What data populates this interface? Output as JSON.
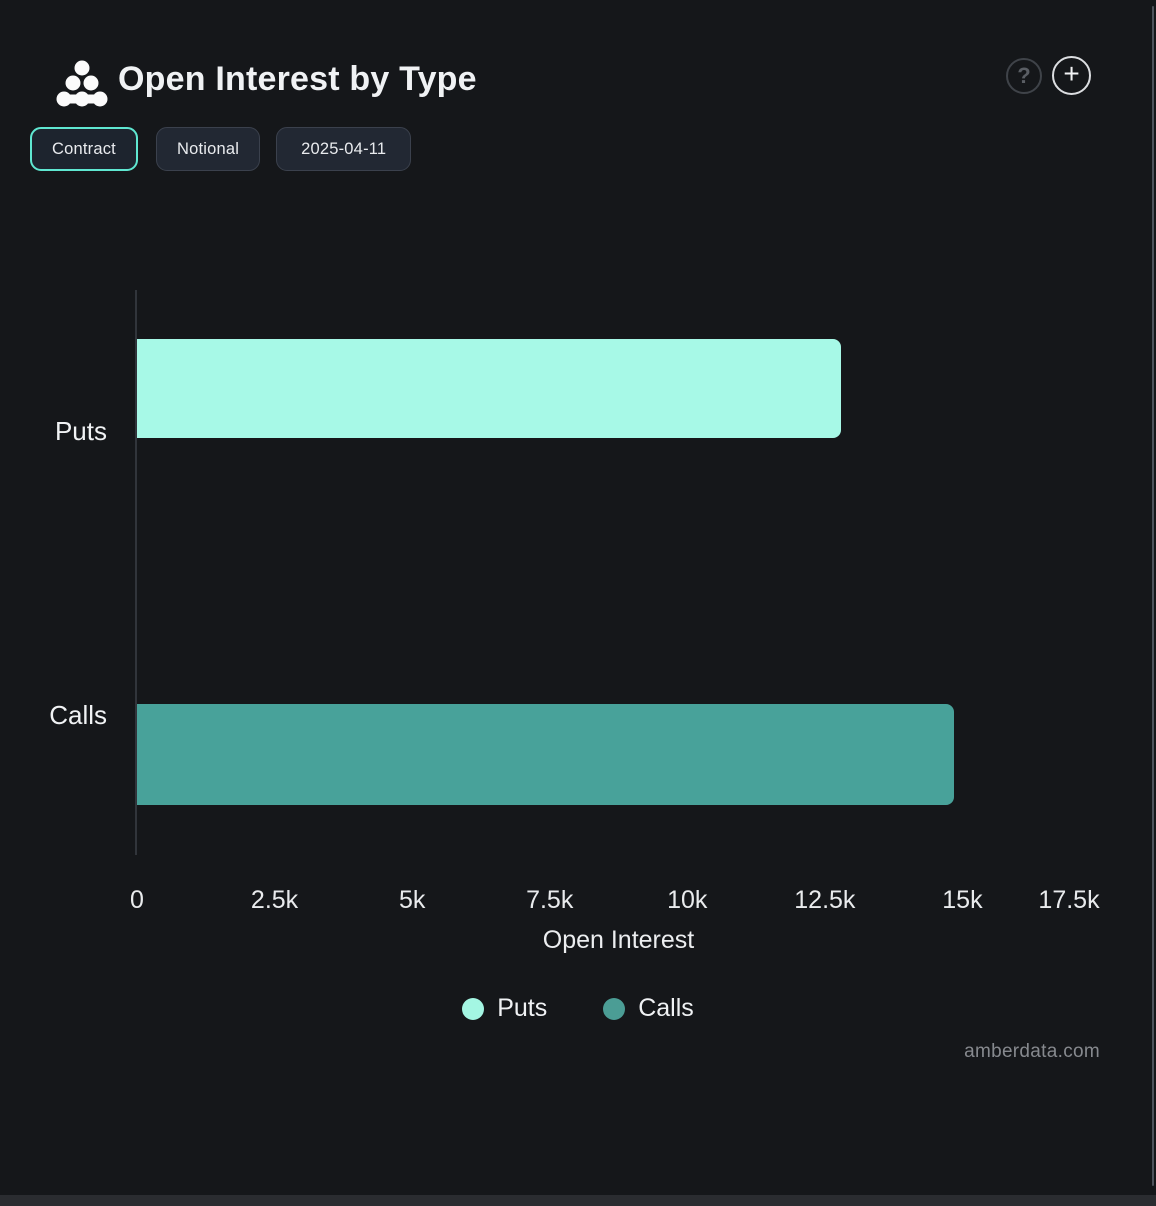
{
  "header": {
    "title": "Open Interest by Type",
    "help_label": "?",
    "add_label": "+"
  },
  "toolbar": {
    "buttons": [
      {
        "label": "Contract",
        "active": true
      },
      {
        "label": "Notional",
        "active": false
      },
      {
        "label": "2025-04-11",
        "active": false
      }
    ]
  },
  "chart_data": {
    "type": "bar",
    "orientation": "horizontal",
    "title": "Open Interest by Type",
    "categories": [
      "Puts",
      "Calls"
    ],
    "values": [
      12800,
      14850
    ],
    "series": [
      {
        "name": "Puts",
        "value": 12800,
        "color": "#a7f9e7"
      },
      {
        "name": "Calls",
        "value": 14850,
        "color": "#48a29a"
      }
    ],
    "xlabel": "Open Interest",
    "ylabel": "",
    "xlim": [
      0,
      17500
    ],
    "x_ticks": [
      "0",
      "2.5k",
      "5k",
      "7.5k",
      "10k",
      "12.5k",
      "15k",
      "17.5k"
    ],
    "grid": false,
    "legend_position": "bottom",
    "legend": [
      {
        "label": "Puts",
        "color": "#a4f6e3"
      },
      {
        "label": "Calls",
        "color": "#4b9d95"
      }
    ]
  },
  "footer": {
    "watermark": "amberdata.com"
  },
  "colors": {
    "background": "#15171a",
    "accent": "#5fe7d1",
    "puts_bar": "#a7f9e7",
    "calls_bar": "#48a29a",
    "axis_line": "#31353b"
  }
}
